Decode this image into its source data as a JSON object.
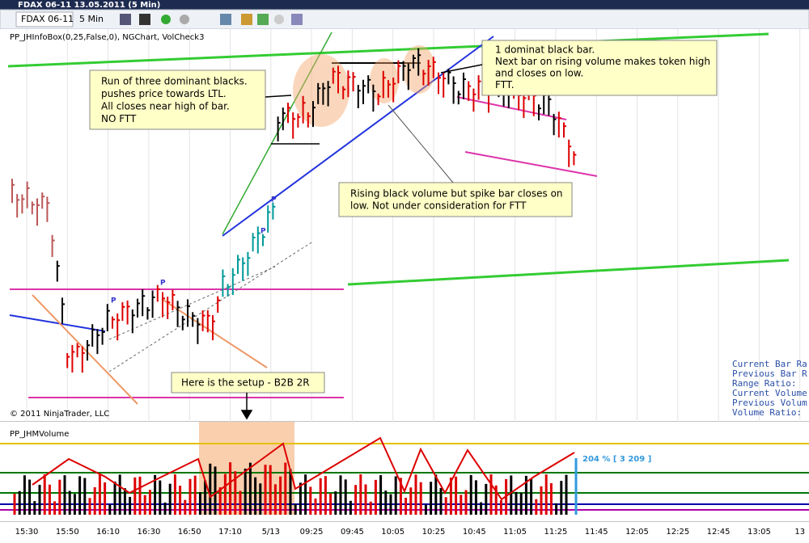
{
  "window": {
    "title": "FDAX 06-11  13.05.2011 (5 Min)"
  },
  "toolbar": {
    "instrument": "FDAX 06-11",
    "interval": "5 Min"
  },
  "price_panel": {
    "indicators": "PP_JHInfoBox(0,25,False,0), NGChart, VolCheck3",
    "copyright": "© 2011 NinjaTrader, LLC",
    "annotations": [
      {
        "lines": [
          "Run of three dominant blacks.",
          "pushes price towards LTL.",
          "All closes near high of bar.",
          "NO FTT"
        ]
      },
      {
        "lines": [
          "1 dominat black bar.",
          "Next bar on rising volume makes token high",
          "and closes on low.",
          "FTT."
        ]
      },
      {
        "lines": [
          "Rising black volume but spike bar closes on",
          "low.  Not under consideration for FTT"
        ]
      },
      {
        "lines": [
          "Here is the setup - B2B 2R"
        ]
      }
    ],
    "info_box": [
      "Current Bar Ra",
      "Previous Bar R",
      "Range Ratio:",
      "Current Volume",
      "Previous Volum",
      "Volume Ratio:"
    ],
    "markers": [
      "P",
      "P",
      "P",
      "P"
    ]
  },
  "volume_panel": {
    "title": "PP_JHMVolume",
    "label": "204 % [ 3 209 ]"
  },
  "time_axis": [
    "15:30",
    "15:50",
    "16:10",
    "16:30",
    "16:50",
    "17:10",
    "5/13",
    "09:25",
    "09:45",
    "10:05",
    "10:25",
    "10:45",
    "11:05",
    "11:25",
    "11:45",
    "12:05",
    "12:25",
    "12:45",
    "13:05",
    "13"
  ]
}
